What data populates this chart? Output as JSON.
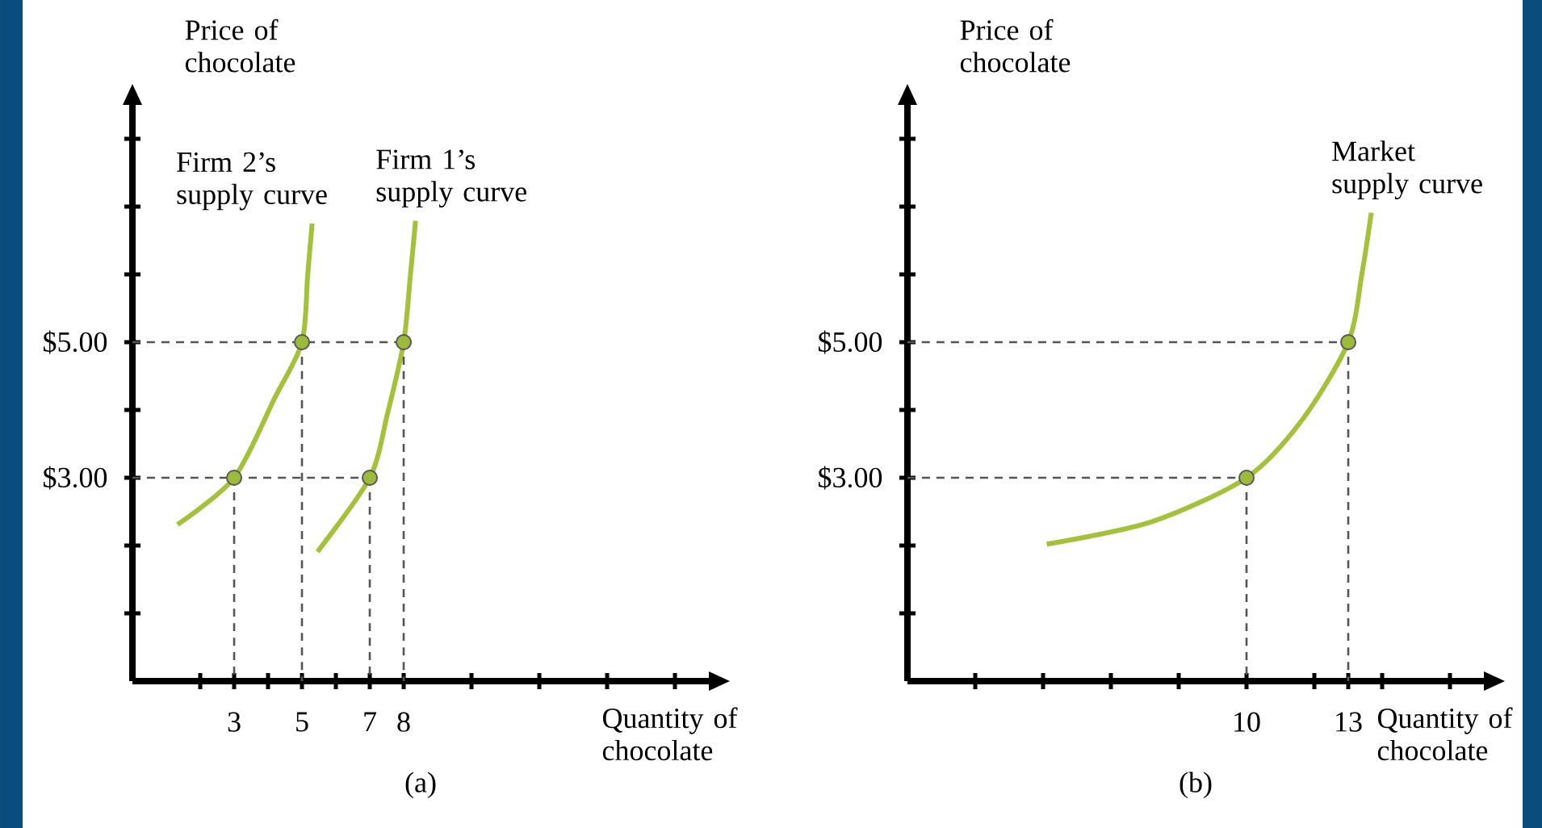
{
  "chart_data": [
    {
      "type": "line",
      "title": "(a)",
      "xlabel": "Quantity of chocolate",
      "ylabel": "Price of chocolate",
      "xlim": [
        0,
        17
      ],
      "ylim": [
        0,
        8.5
      ],
      "xticks": [
        {
          "value": 2,
          "label": null
        },
        {
          "value": 3,
          "label": "3"
        },
        {
          "value": 4,
          "label": null
        },
        {
          "value": 5,
          "label": "5"
        },
        {
          "value": 6,
          "label": null
        },
        {
          "value": 7,
          "label": "7"
        },
        {
          "value": 8,
          "label": "8"
        },
        {
          "value": 10,
          "label": null
        },
        {
          "value": 12,
          "label": null
        },
        {
          "value": 14,
          "label": null
        },
        {
          "value": 16,
          "label": null
        }
      ],
      "yticks": [
        {
          "value": 1,
          "label": null
        },
        {
          "value": 2,
          "label": null
        },
        {
          "value": 3,
          "label": "$3.00"
        },
        {
          "value": 4,
          "label": null
        },
        {
          "value": 5,
          "label": "$5.00"
        },
        {
          "value": 6,
          "label": null
        },
        {
          "value": 7,
          "label": null
        },
        {
          "value": 8,
          "label": null
        }
      ],
      "series": [
        {
          "name": "Firm 2’s supply curve",
          "color": "#a3c23a",
          "x": [
            1.33,
            3,
            4.19,
            5,
            5.17,
            5.3
          ],
          "values": [
            2.31,
            3,
            4.17,
            5,
            6.0,
            6.75
          ]
        },
        {
          "name": "Firm 1’s supply curve",
          "color": "#a3c23a",
          "x": [
            5.46,
            7,
            7.52,
            8,
            8.2,
            8.35
          ],
          "values": [
            1.91,
            3,
            3.94,
            5,
            6.0,
            6.79
          ]
        },
        {
          "type": "line",
          "line_style": "dashed",
          "color": "#555555",
          "x": [
            0,
            8
          ],
          "values": [
            5,
            5
          ]
        },
        {
          "type": "line",
          "line_style": "dashed",
          "color": "#555555",
          "x": [
            0,
            7
          ],
          "values": [
            3,
            3
          ]
        },
        {
          "type": "line",
          "line_style": "dashed",
          "color": "#555555",
          "x": [
            3,
            3
          ],
          "values": [
            3,
            0
          ]
        },
        {
          "type": "line",
          "line_style": "dashed",
          "color": "#555555",
          "x": [
            5,
            5
          ],
          "values": [
            5,
            0
          ]
        },
        {
          "type": "line",
          "line_style": "dashed",
          "color": "#555555",
          "x": [
            7,
            7
          ],
          "values": [
            3,
            0
          ]
        },
        {
          "type": "line",
          "line_style": "dashed",
          "color": "#555555",
          "x": [
            8,
            8
          ],
          "values": [
            5,
            0
          ]
        },
        {
          "type": "scatter",
          "marker": "circle",
          "color": "#9dbb3a",
          "x": [
            3,
            5,
            7,
            8
          ],
          "values": [
            3,
            5,
            3,
            5
          ]
        }
      ]
    },
    {
      "type": "line",
      "title": "(b)",
      "xlabel": "Quantity of chocolate",
      "ylabel": "Price of chocolate",
      "xlim": [
        0,
        17
      ],
      "ylim": [
        0,
        8.5
      ],
      "xticks": [
        {
          "value": 2,
          "label": null
        },
        {
          "value": 4,
          "label": null
        },
        {
          "value": 6,
          "label": null
        },
        {
          "value": 8,
          "label": null
        },
        {
          "value": 10,
          "label": "10"
        },
        {
          "value": 12,
          "label": null
        },
        {
          "value": 13,
          "label": "13"
        },
        {
          "value": 14,
          "label": null
        },
        {
          "value": 16,
          "label": null
        }
      ],
      "yticks": [
        {
          "value": 1,
          "label": null
        },
        {
          "value": 2,
          "label": null
        },
        {
          "value": 3,
          "label": "$3.00"
        },
        {
          "value": 4,
          "label": null
        },
        {
          "value": 5,
          "label": "$5.00"
        },
        {
          "value": 6,
          "label": null
        },
        {
          "value": 7,
          "label": null
        },
        {
          "value": 8,
          "label": null
        }
      ],
      "series": [
        {
          "name": "Market supply curve",
          "color": "#a3c23a",
          "x": [
            4.11,
            7.2,
            10,
            11.65,
            13,
            13.4,
            13.68
          ],
          "values": [
            2.02,
            2.35,
            3,
            3.86,
            5,
            6.0,
            6.91
          ]
        },
        {
          "type": "line",
          "line_style": "dashed",
          "color": "#555555",
          "x": [
            0,
            13
          ],
          "values": [
            5,
            5
          ]
        },
        {
          "type": "line",
          "line_style": "dashed",
          "color": "#555555",
          "x": [
            0,
            10
          ],
          "values": [
            3,
            3
          ]
        },
        {
          "type": "line",
          "line_style": "dashed",
          "color": "#555555",
          "x": [
            10,
            10
          ],
          "values": [
            3,
            0
          ]
        },
        {
          "type": "line",
          "line_style": "dashed",
          "color": "#555555",
          "x": [
            13,
            13
          ],
          "values": [
            5,
            0
          ]
        },
        {
          "type": "scatter",
          "marker": "circle",
          "color": "#9dbb3a",
          "x": [
            10,
            13
          ],
          "values": [
            3,
            5
          ]
        }
      ]
    }
  ]
}
